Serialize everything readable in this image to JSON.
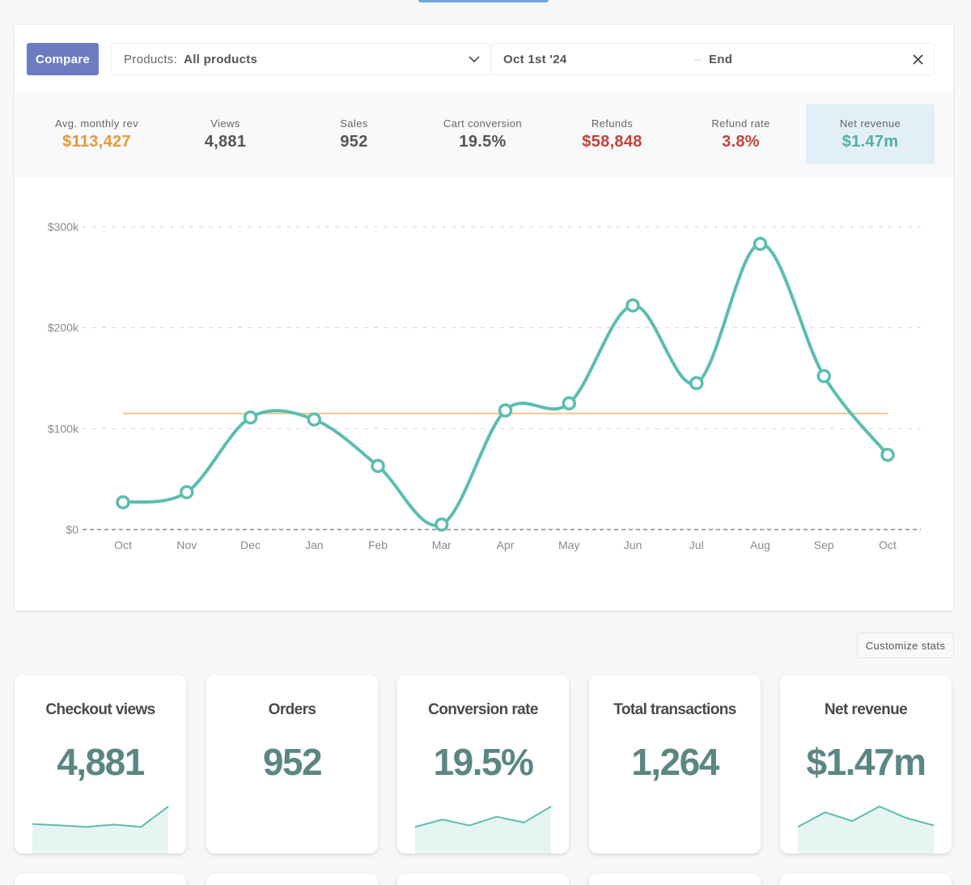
{
  "toolbar": {
    "compare_label": "Compare",
    "products_label": "Products:",
    "products_value": "All products",
    "date_start": "Oct 1st '24",
    "date_separator": "–",
    "date_end": "End"
  },
  "stats": [
    {
      "label": "Avg. monthly rev",
      "value": "$113,427",
      "color": "#e8983a"
    },
    {
      "label": "Views",
      "value": "4,881",
      "color": "#555555"
    },
    {
      "label": "Sales",
      "value": "952",
      "color": "#555555"
    },
    {
      "label": "Cart conversion",
      "value": "19.5%",
      "color": "#555555"
    },
    {
      "label": "Refunds",
      "value": "$58,848",
      "color": "#c5423b"
    },
    {
      "label": "Refund rate",
      "value": "3.8%",
      "color": "#c5423b"
    },
    {
      "label": "Net revenue",
      "value": "$1.47m",
      "color": "#52b0a4"
    }
  ],
  "chart_data": {
    "type": "line",
    "categories": [
      "Oct",
      "Nov",
      "Dec",
      "Jan",
      "Feb",
      "Mar",
      "Apr",
      "May",
      "Jun",
      "Jul",
      "Aug",
      "Sep",
      "Oct"
    ],
    "series": [
      {
        "values": [
          27000,
          37000,
          111000,
          109000,
          63000,
          5000,
          118000,
          125000,
          222000,
          145000,
          283000,
          152000,
          74000
        ],
        "color": "#5bbdb1"
      }
    ],
    "reference_line": {
      "value": 115000,
      "color": "#eec48a"
    },
    "yticks": [
      {
        "value": 0,
        "label": "$0"
      },
      {
        "value": 100000,
        "label": "$100k"
      },
      {
        "value": 200000,
        "label": "$200k"
      },
      {
        "value": 300000,
        "label": "$300k"
      }
    ],
    "ylim": [
      0,
      300000
    ],
    "grid": true
  },
  "customize_label": "Customize stats",
  "cards": [
    {
      "title": "Checkout views",
      "value": "4,881",
      "spark": [
        0.4,
        0.35,
        0.3,
        0.38,
        0.3,
        1.0
      ]
    },
    {
      "title": "Orders",
      "value": "952",
      "spark": []
    },
    {
      "title": "Conversion rate",
      "value": "19.5%",
      "spark": [
        0.3,
        0.55,
        0.35,
        0.65,
        0.45,
        1.0
      ]
    },
    {
      "title": "Total transactions",
      "value": "1,264",
      "spark": []
    },
    {
      "title": "Net revenue",
      "value": "$1.47m",
      "spark": [
        0.3,
        0.8,
        0.5,
        1.0,
        0.6,
        0.35
      ]
    }
  ],
  "colors": {
    "accent": "#6c7cc0",
    "line": "#5bbdb1",
    "card_value": "#5a8683"
  }
}
